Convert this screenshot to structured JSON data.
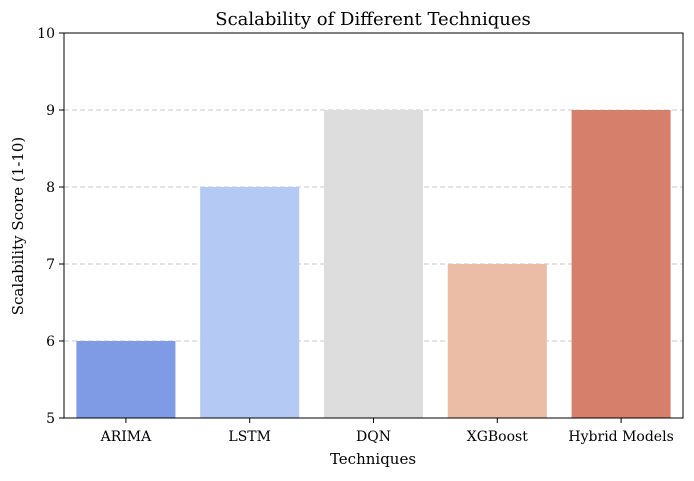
{
  "chart_data": {
    "type": "bar",
    "title": "Scalability of Different Techniques",
    "xlabel": "Techniques",
    "ylabel": "Scalability Score (1-10)",
    "categories": [
      "ARIMA",
      "LSTM",
      "DQN",
      "XGBoost",
      "Hybrid Models"
    ],
    "values": [
      6,
      8,
      9,
      7,
      9
    ],
    "colors": [
      "#7f9be6",
      "#b4c9f4",
      "#dddddd",
      "#ebbda6",
      "#d6806c"
    ],
    "ylim": [
      5,
      10
    ],
    "yticks": [
      5,
      6,
      7,
      8,
      9,
      10
    ],
    "grid": "y-dashed",
    "grid_color": "#c8c8c8",
    "legend": "none"
  }
}
